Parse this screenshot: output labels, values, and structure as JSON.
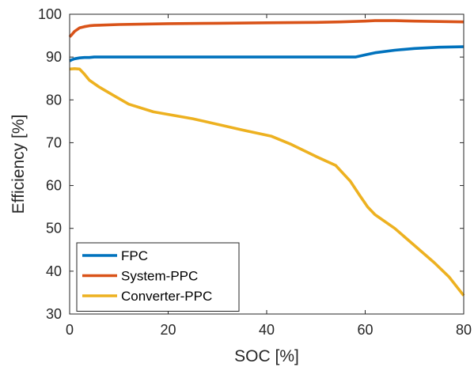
{
  "chart_data": {
    "type": "line",
    "xlabel": "SOC [%]",
    "ylabel": "Efficiency [%]",
    "xlim": [
      0,
      80
    ],
    "ylim": [
      30,
      100
    ],
    "xticks": [
      "0",
      "20",
      "40",
      "60",
      "80"
    ],
    "yticks": [
      "30",
      "40",
      "50",
      "60",
      "70",
      "80",
      "90",
      "100"
    ],
    "grid": false,
    "legend_position": "bottom-left",
    "series": [
      {
        "name": "FPC",
        "color": "#0072BD",
        "x": [
          0,
          0.5,
          1,
          2,
          3,
          4,
          5,
          10,
          20,
          30,
          40,
          50,
          55,
          58,
          60,
          62,
          66,
          70,
          75,
          80
        ],
        "y": [
          89.1,
          89.4,
          89.6,
          89.8,
          89.9,
          89.9,
          90.0,
          90.0,
          90.0,
          90.0,
          90.0,
          90.0,
          90.0,
          90.0,
          90.5,
          91.0,
          91.6,
          92.0,
          92.3,
          92.4
        ]
      },
      {
        "name": "System-PPC",
        "color": "#D95319",
        "x": [
          0,
          0.5,
          1,
          2,
          3,
          4,
          5,
          10,
          20,
          30,
          40,
          50,
          55,
          60,
          62,
          66,
          70,
          75,
          80
        ],
        "y": [
          94.7,
          95.3,
          96.0,
          96.8,
          97.1,
          97.3,
          97.4,
          97.6,
          97.8,
          97.9,
          98.0,
          98.1,
          98.2,
          98.4,
          98.5,
          98.5,
          98.4,
          98.3,
          98.2
        ]
      },
      {
        "name": "Converter-PPC",
        "color": "#EDB120",
        "x": [
          0,
          1,
          2,
          3,
          4,
          6,
          9,
          12,
          17,
          25,
          35,
          41,
          45,
          50,
          54,
          57,
          59,
          60.5,
          62,
          66,
          70,
          74,
          77,
          80
        ],
        "y": [
          87.2,
          87.3,
          87.2,
          86.0,
          84.6,
          83.0,
          81.0,
          79.0,
          77.2,
          75.6,
          73.0,
          71.5,
          69.6,
          66.8,
          64.7,
          61.0,
          57.5,
          55.0,
          53.2,
          50.0,
          46.0,
          42.0,
          38.7,
          34.3
        ]
      }
    ]
  }
}
